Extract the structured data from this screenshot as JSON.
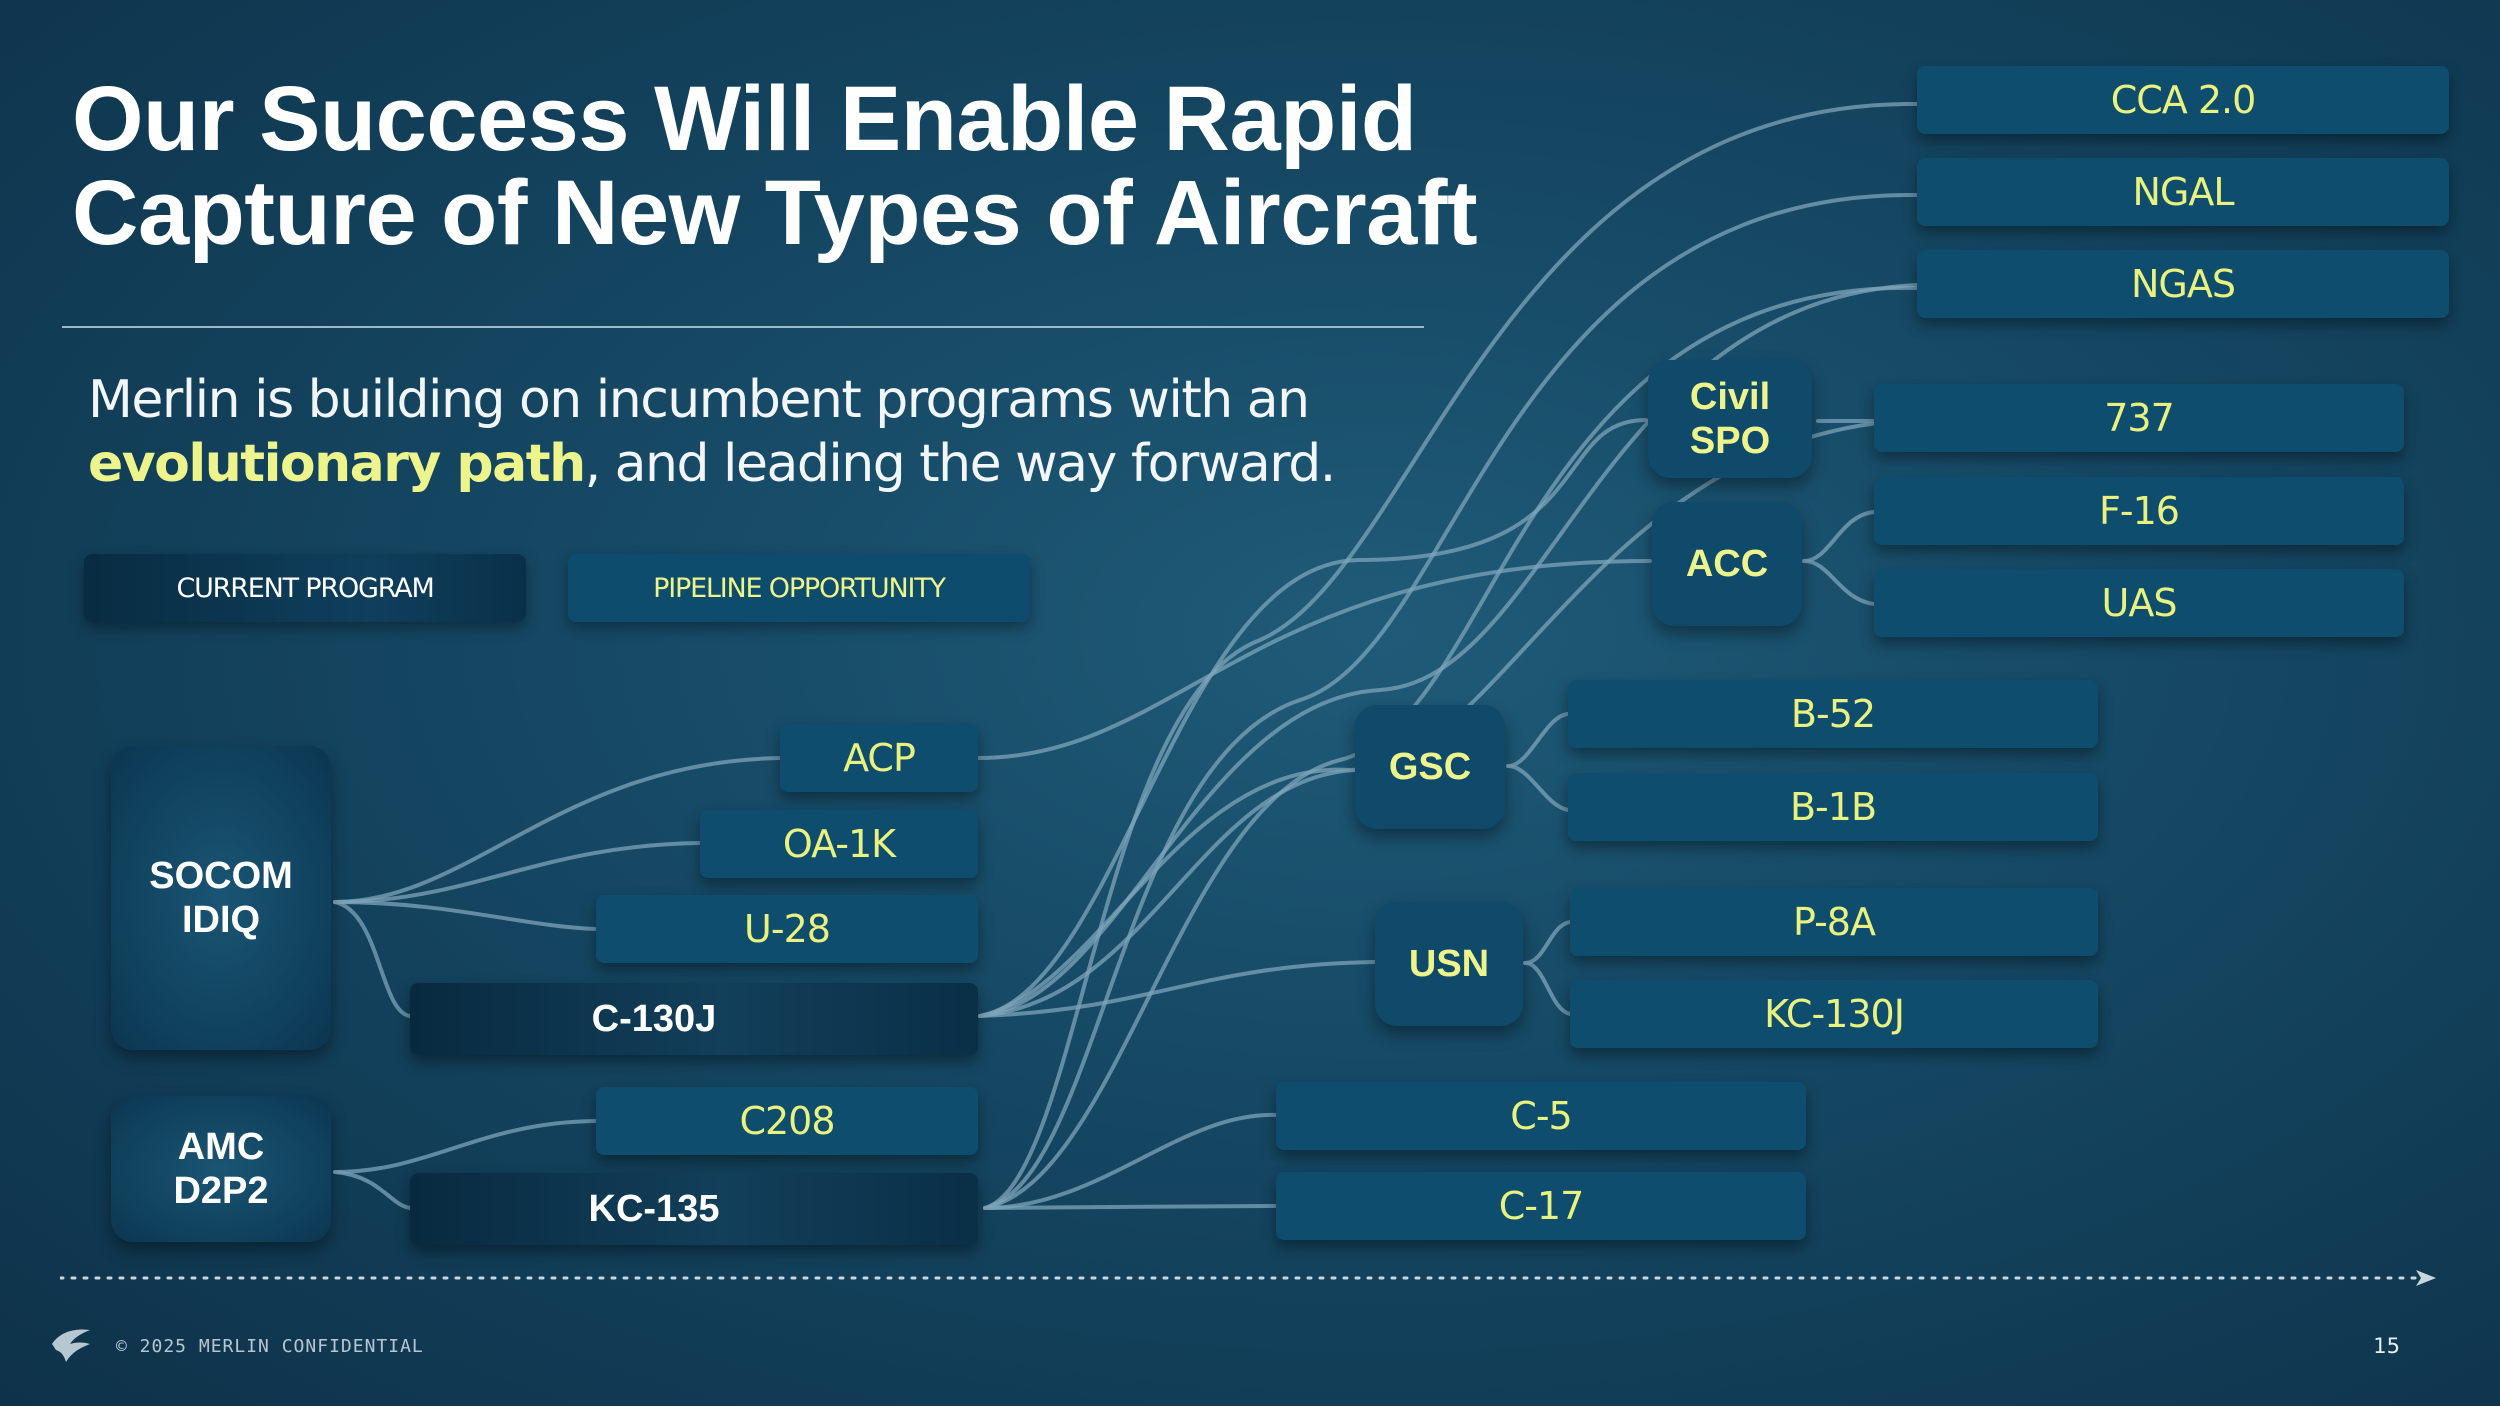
{
  "title": {
    "line1": "Our Success Will Enable Rapid",
    "line2": "Capture of New Types of Aircraft"
  },
  "subtitle": {
    "line1": "Merlin is building on incumbent programs with an",
    "highlight": "evolutionary path",
    "rest": ", and leading the way forward."
  },
  "legend": {
    "current": "CURRENT PROGRAM",
    "pipeline": "PIPELINE OPPORTUNITY"
  },
  "hubs": {
    "socom": "SOCOM\nIDIQ",
    "amc": "AMC\nD2P2",
    "gsc": "GSC",
    "usn": "USN",
    "civil": "Civil\nSPO",
    "acc": "ACC"
  },
  "programs": {
    "acp": "ACP",
    "oa1k": "OA-1K",
    "u28": "U-28",
    "c130j": "C-130J",
    "c208": "C208",
    "kc135": "KC-135",
    "b52": "B-52",
    "b1b": "B-1B",
    "p8a": "P-8A",
    "kc130j": "KC-130J",
    "c5": "C-5",
    "c17": "C-17",
    "b737": "737",
    "f16": "F-16",
    "uas": "UAS",
    "cca": "CCA 2.0",
    "ngal": "NGAL",
    "ngas": "NGAS"
  },
  "colors": {
    "background": "#154865",
    "pipeline_box": "#0f4d6e",
    "pipeline_text": "#e9f27f",
    "current_text": "#ffffff",
    "connector": "#7ea4b9"
  },
  "footer": {
    "confidential": "© 2025 MERLIN CONFIDENTIAL",
    "page": "15"
  }
}
